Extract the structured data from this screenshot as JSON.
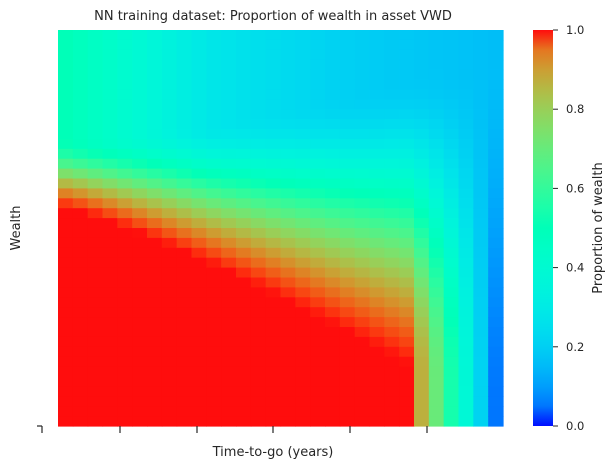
{
  "chart_data": {
    "type": "heatmap",
    "title": "NN training dataset: Proportion of wealth in asset VWD",
    "xlabel": "Time-to-go (years)",
    "ylabel": "Wealth",
    "x_tick_labels_visible": false,
    "y_tick_labels_visible": false,
    "colormap": "rainbow",
    "colorbar": {
      "label": "Proportion of wealth",
      "range": [
        0.0,
        1.0
      ],
      "ticks": [
        0.0,
        0.2,
        0.4,
        0.6,
        0.8,
        1.0
      ],
      "tick_labels": [
        "0.0",
        "0.2",
        "0.4",
        "0.6",
        "0.8",
        "1.0"
      ]
    },
    "columns": 30,
    "rows": 40,
    "grid": false,
    "pattern": {
      "high_wealth_value_by_time": [
        0.5,
        0.28,
        0.2,
        0.16
      ],
      "low_wealth_value": 1.0,
      "long_horizon_low_value": 0.05,
      "transition_from_wealth_fraction": [
        0.27,
        0.04
      ],
      "transition_to_wealth_fraction": [
        0.45,
        0.98
      ]
    }
  }
}
